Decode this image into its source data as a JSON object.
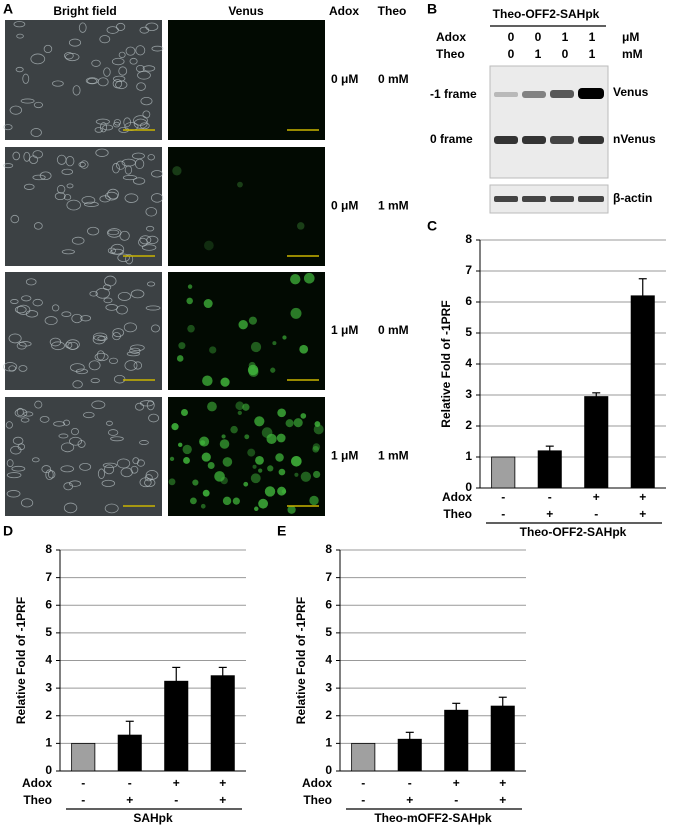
{
  "panel_a": {
    "label": "A",
    "columns": [
      "Bright field",
      "Venus"
    ],
    "row_headers": [
      "Adox",
      "Theo"
    ],
    "rows": [
      [
        "0 μM",
        "0 mM"
      ],
      [
        "0 μM",
        "1 mM"
      ],
      [
        "1 μM",
        "0 mM"
      ],
      [
        "1 μM",
        "1 mM"
      ]
    ]
  },
  "panel_b": {
    "label": "B",
    "construct": "Theo-OFF2-SAHpk",
    "conditions": [
      {
        "name": "Adox",
        "values": [
          "0",
          "0",
          "1",
          "1"
        ],
        "unit": "μM"
      },
      {
        "name": "Theo",
        "values": [
          "0",
          "1",
          "0",
          "1"
        ],
        "unit": "mM"
      }
    ],
    "bands": [
      {
        "left": "-1 frame",
        "right": "Venus"
      },
      {
        "left": "0 frame",
        "right": "nVenus"
      },
      {
        "right": "β-actin"
      }
    ]
  },
  "chart_data": [
    {
      "type": "bar",
      "label": "C",
      "ylabel": "Relative Fold of -1PRF",
      "categories": [
        null,
        null,
        null,
        null
      ],
      "values": [
        1,
        1.2,
        2.95,
        6.2
      ],
      "errors": [
        null,
        0.15,
        0.12,
        0.55
      ],
      "colors": [
        "#a0a0a0",
        "#000000",
        "#000000",
        "#000000"
      ],
      "conditions": [
        {
          "name": "Adox",
          "labels": [
            "-",
            "-",
            "+",
            "+"
          ]
        },
        {
          "name": "Theo",
          "labels": [
            "-",
            "+",
            "-",
            "+"
          ]
        }
      ],
      "construct": "Theo-OFF2-SAHpk",
      "ylim": [
        0,
        8
      ],
      "yticks": [
        0,
        1,
        2,
        3,
        4,
        5,
        6,
        7,
        8
      ],
      "grid": true
    },
    {
      "type": "bar",
      "label": "D",
      "ylabel": "Relative Fold of -1PRF",
      "categories": [
        null,
        null,
        null,
        null
      ],
      "values": [
        1,
        1.3,
        3.25,
        3.45
      ],
      "errors": [
        null,
        0.5,
        0.5,
        0.3
      ],
      "colors": [
        "#a0a0a0",
        "#000000",
        "#000000",
        "#000000"
      ],
      "conditions": [
        {
          "name": "Adox",
          "labels": [
            "-",
            "-",
            "+",
            "+"
          ]
        },
        {
          "name": "Theo",
          "labels": [
            "-",
            "+",
            "-",
            "+"
          ]
        }
      ],
      "construct": "SAHpk",
      "ylim": [
        0,
        8
      ],
      "yticks": [
        0,
        1,
        2,
        3,
        4,
        5,
        6,
        7,
        8
      ],
      "grid": true
    },
    {
      "type": "bar",
      "label": "E",
      "ylabel": "Relative Fold of -1PRF",
      "categories": [
        null,
        null,
        null,
        null
      ],
      "values": [
        1,
        1.15,
        2.2,
        2.35
      ],
      "errors": [
        null,
        0.25,
        0.25,
        0.32
      ],
      "colors": [
        "#a0a0a0",
        "#000000",
        "#000000",
        "#000000"
      ],
      "conditions": [
        {
          "name": "Adox",
          "labels": [
            "-",
            "-",
            "+",
            "+"
          ]
        },
        {
          "name": "Theo",
          "labels": [
            "-",
            "+",
            "-",
            "+"
          ]
        }
      ],
      "construct": "Theo-mOFF2-SAHpk",
      "ylim": [
        0,
        8
      ],
      "yticks": [
        0,
        1,
        2,
        3,
        4,
        5,
        6,
        7,
        8
      ],
      "grid": true
    }
  ]
}
